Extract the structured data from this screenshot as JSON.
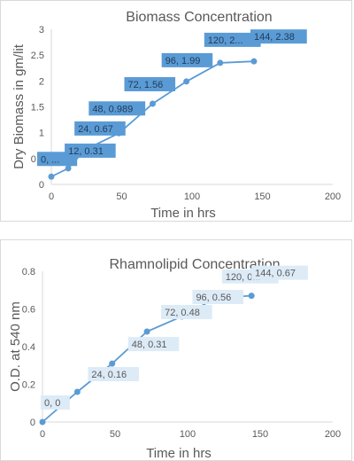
{
  "colors": {
    "series": "#5B9BD5",
    "label_box_dark": "#5B9BD5",
    "label_box_light": "#DDEBF7",
    "axis_line": "#d9d9d9",
    "text": "#595959"
  },
  "chart_data": [
    {
      "type": "scatter",
      "title": "Biomass Concentration",
      "xlabel": "Time in hrs",
      "ylabel": "Dry Biomass in gm/lit",
      "xlim": [
        0,
        200
      ],
      "ylim": [
        0,
        3
      ],
      "xticks": [
        "0",
        "50",
        "100",
        "150",
        "200"
      ],
      "yticks": [
        "0",
        "0.5",
        "1",
        "1.5",
        "2",
        "2.5",
        "3"
      ],
      "grid": false,
      "lines": true,
      "label_style": "dark",
      "points": [
        {
          "x": 0,
          "y": 0.15,
          "label": "0, ..."
        },
        {
          "x": 12,
          "y": 0.31,
          "label": "12, 0.31"
        },
        {
          "x": 24,
          "y": 0.67,
          "label": "24, 0.67"
        },
        {
          "x": 48,
          "y": 0.989,
          "label": "48, 0.989"
        },
        {
          "x": 72,
          "y": 1.56,
          "label": "72, 1.56"
        },
        {
          "x": 96,
          "y": 1.99,
          "label": "96, 1.99"
        },
        {
          "x": 120,
          "y": 2.35,
          "label": "120, 2..."
        },
        {
          "x": 144,
          "y": 2.38,
          "label": "144, 2.38"
        }
      ]
    },
    {
      "type": "scatter",
      "title": "Rhamnolipid Concentration",
      "xlabel": "Time in hrs",
      "ylabel": "O.D. at 540 nm",
      "xlim": [
        0,
        200
      ],
      "ylim": [
        0,
        0.8
      ],
      "xticks": [
        "0",
        "50",
        "100",
        "150",
        "200"
      ],
      "yticks": [
        "0",
        "0.2",
        "0.4",
        "0.6",
        "0.8"
      ],
      "grid": false,
      "lines": true,
      "label_style": "light",
      "points": [
        {
          "x": 0,
          "y": 0,
          "label": "0, 0"
        },
        {
          "x": 24,
          "y": 0.16,
          "label": "24, 0.16"
        },
        {
          "x": 48,
          "y": 0.31,
          "label": "48, 0.31"
        },
        {
          "x": 72,
          "y": 0.48,
          "label": "72, 0.48"
        },
        {
          "x": 96,
          "y": 0.56,
          "label": "96, 0.56"
        },
        {
          "x": 120,
          "y": 0.66,
          "label": "120, 0..."
        },
        {
          "x": 144,
          "y": 0.67,
          "label": "144, 0.67"
        }
      ]
    }
  ]
}
